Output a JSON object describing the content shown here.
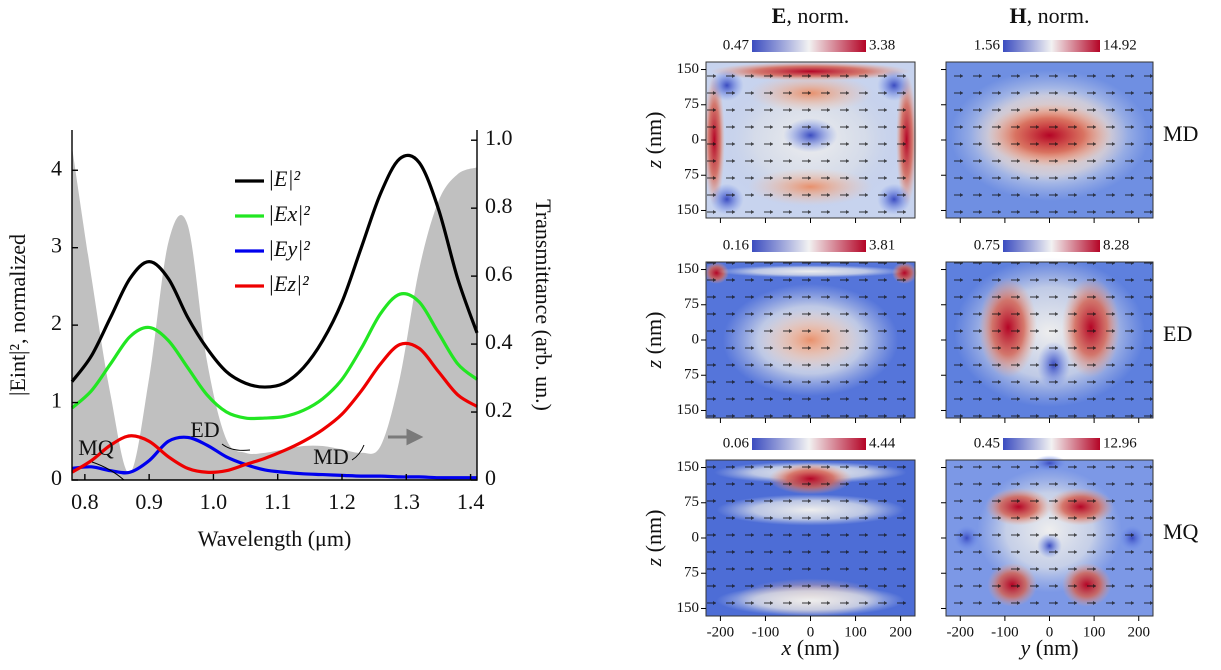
{
  "chart_data": {
    "type": "line",
    "xlabel": "Wavelength (μm)",
    "ylabel": "|Eint|², normalized",
    "y2label": "Transmittance (arb. un.)",
    "x": [
      0.78,
      0.81,
      0.84,
      0.87,
      0.9,
      0.93,
      0.96,
      0.99,
      1.02,
      1.05,
      1.08,
      1.11,
      1.14,
      1.17,
      1.2,
      1.23,
      1.26,
      1.29,
      1.32,
      1.35,
      1.38,
      1.41
    ],
    "series": [
      {
        "name": "|E|²",
        "color": "#000000",
        "values": [
          1.27,
          1.6,
          2.1,
          2.6,
          2.82,
          2.6,
          2.1,
          1.7,
          1.4,
          1.25,
          1.2,
          1.25,
          1.45,
          1.8,
          2.3,
          3.0,
          3.7,
          4.15,
          4.1,
          3.5,
          2.6,
          1.9
        ]
      },
      {
        "name": "|Ex|²",
        "color": "#22e622",
        "values": [
          0.93,
          1.15,
          1.5,
          1.85,
          1.97,
          1.8,
          1.45,
          1.1,
          0.88,
          0.8,
          0.8,
          0.82,
          0.9,
          1.05,
          1.3,
          1.7,
          2.15,
          2.4,
          2.3,
          1.9,
          1.5,
          1.3
        ]
      },
      {
        "name": "|Ey|²",
        "color": "#0000ee",
        "values": [
          0.15,
          0.17,
          0.12,
          0.1,
          0.25,
          0.5,
          0.55,
          0.45,
          0.3,
          0.2,
          0.13,
          0.1,
          0.08,
          0.07,
          0.06,
          0.05,
          0.05,
          0.04,
          0.04,
          0.03,
          0.03,
          0.03
        ]
      },
      {
        "name": "|Ez|²",
        "color": "#ee0000",
        "values": [
          0.1,
          0.25,
          0.45,
          0.57,
          0.5,
          0.3,
          0.15,
          0.1,
          0.12,
          0.2,
          0.28,
          0.38,
          0.5,
          0.65,
          0.85,
          1.15,
          1.5,
          1.75,
          1.7,
          1.4,
          1.1,
          0.95
        ]
      }
    ],
    "area": {
      "color": "#c0c0c0",
      "axis": "y2",
      "values": [
        0.98,
        0.6,
        0.25,
        0.02,
        0.3,
        0.7,
        0.75,
        0.35,
        0.12,
        0.08,
        0.08,
        0.09,
        0.1,
        0.1,
        0.09,
        0.08,
        0.1,
        0.3,
        0.62,
        0.82,
        0.9,
        0.92
      ]
    },
    "annotations": [
      "MQ",
      "ED",
      "MD"
    ],
    "xlim": [
      0.78,
      1.41
    ],
    "xticks": [
      0.8,
      0.9,
      {
        "value": 1,
        "label": "1.0"
      },
      1.1,
      1.2,
      1.3,
      1.4
    ],
    "ylim": [
      0,
      4.52
    ],
    "yticks": [
      0,
      1,
      2,
      3,
      4
    ],
    "y2lim": [
      0,
      1.03
    ],
    "y2ticks": [
      0,
      0.2,
      0.4,
      0.6,
      0.8,
      {
        "value": 1,
        "label": "1.0"
      }
    ]
  },
  "field_maps": {
    "column_titles": [
      [
        "E",
        ", norm."
      ],
      [
        "H",
        ", norm."
      ]
    ],
    "row_labels": [
      "MD",
      "ED",
      "MQ"
    ],
    "colorbars": [
      [
        [
          0.47,
          3.38
        ],
        [
          1.56,
          14.92
        ]
      ],
      [
        [
          0.16,
          3.81
        ],
        [
          0.75,
          8.28
        ]
      ],
      [
        [
          0.06,
          4.44
        ],
        [
          0.45,
          12.96
        ]
      ]
    ],
    "xlim": [
      -232,
      232
    ],
    "ylim": [
      -166,
      166
    ],
    "xticks": [
      -200,
      -100,
      0,
      100,
      200
    ],
    "yticks": [
      150,
      75,
      0,
      {
        "value": -75,
        "label": "75"
      },
      {
        "value": -150,
        "label": "150"
      }
    ],
    "ylabel": [
      "z",
      " (nm)"
    ],
    "xlabels": [
      [
        "x",
        " (nm)"
      ],
      [
        "y",
        " (nm)"
      ]
    ]
  }
}
